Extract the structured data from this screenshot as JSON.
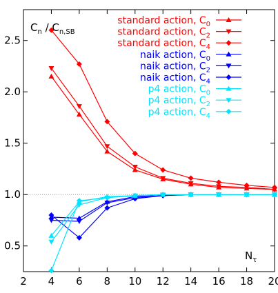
{
  "chart_data": {
    "type": "line",
    "ylabel_main": "C",
    "ylabel_sub1": "n",
    "ylabel_mid": " / C",
    "ylabel_sub2": "n,SB",
    "xlabel_main": "N",
    "xlabel_sub": "τ",
    "xlim": [
      2,
      20
    ],
    "ylim": [
      0.25,
      2.8
    ],
    "xticks": [
      2,
      4,
      6,
      8,
      10,
      12,
      14,
      16,
      18,
      20
    ],
    "yticks": [
      0.5,
      1.0,
      1.5,
      2.0,
      2.5
    ],
    "ytick_labels": [
      "0.5",
      "1.0",
      "1.5",
      "2.0",
      "2.5"
    ],
    "reference_line": 1.0,
    "x": [
      4,
      6,
      8,
      10,
      12,
      14,
      16,
      18,
      20
    ],
    "series": [
      {
        "legend_prefix": "standard action, C",
        "legend_sub": "0",
        "color": "#ff0000",
        "marker": "triangle-up",
        "values": [
          2.15,
          1.78,
          1.42,
          1.24,
          1.15,
          1.1,
          1.07,
          1.06,
          1.05
        ]
      },
      {
        "legend_prefix": "standard action, C",
        "legend_sub": "2",
        "color": "#ff0000",
        "marker": "triangle-down",
        "values": [
          2.23,
          1.86,
          1.47,
          1.27,
          1.16,
          1.11,
          1.08,
          1.07,
          1.05
        ]
      },
      {
        "legend_prefix": "standard action, C",
        "legend_sub": "4",
        "color": "#ff0000",
        "marker": "diamond",
        "values": [
          2.6,
          2.27,
          1.71,
          1.4,
          1.24,
          1.16,
          1.12,
          1.09,
          1.07
        ]
      },
      {
        "legend_prefix": "naik action, C",
        "legend_sub": "0",
        "color": "#0000ff",
        "marker": "triangle-up",
        "values": [
          0.78,
          0.77,
          0.93,
          0.98,
          1.0,
          1.0,
          1.0,
          1.0,
          1.0
        ]
      },
      {
        "legend_prefix": "naik action, C",
        "legend_sub": "2",
        "color": "#0000ff",
        "marker": "triangle-down",
        "values": [
          0.75,
          0.74,
          0.92,
          0.97,
          0.99,
          1.0,
          1.0,
          1.0,
          1.0
        ]
      },
      {
        "legend_prefix": "naik action, C",
        "legend_sub": "4",
        "color": "#0000ff",
        "marker": "diamond",
        "values": [
          0.8,
          0.58,
          0.87,
          0.96,
          0.99,
          1.0,
          1.0,
          1.0,
          1.0
        ]
      },
      {
        "legend_prefix": "p4 action, C",
        "legend_sub": "0",
        "color": "#00e5ff",
        "marker": "triangle-up",
        "values": [
          0.6,
          0.93,
          0.98,
          0.99,
          1.0,
          1.0,
          1.0,
          1.0,
          1.0
        ]
      },
      {
        "legend_prefix": "p4 action, C",
        "legend_sub": "2",
        "color": "#00e5ff",
        "marker": "triangle-down",
        "values": [
          0.54,
          0.9,
          0.97,
          0.99,
          1.0,
          1.0,
          1.0,
          1.0,
          1.0
        ]
      },
      {
        "legend_prefix": "p4 action, C",
        "legend_sub": "4",
        "color": "#00e5ff",
        "marker": "diamond",
        "values": [
          0.26,
          0.94,
          0.97,
          0.99,
          1.0,
          1.0,
          1.0,
          1.0,
          1.0
        ]
      }
    ]
  }
}
